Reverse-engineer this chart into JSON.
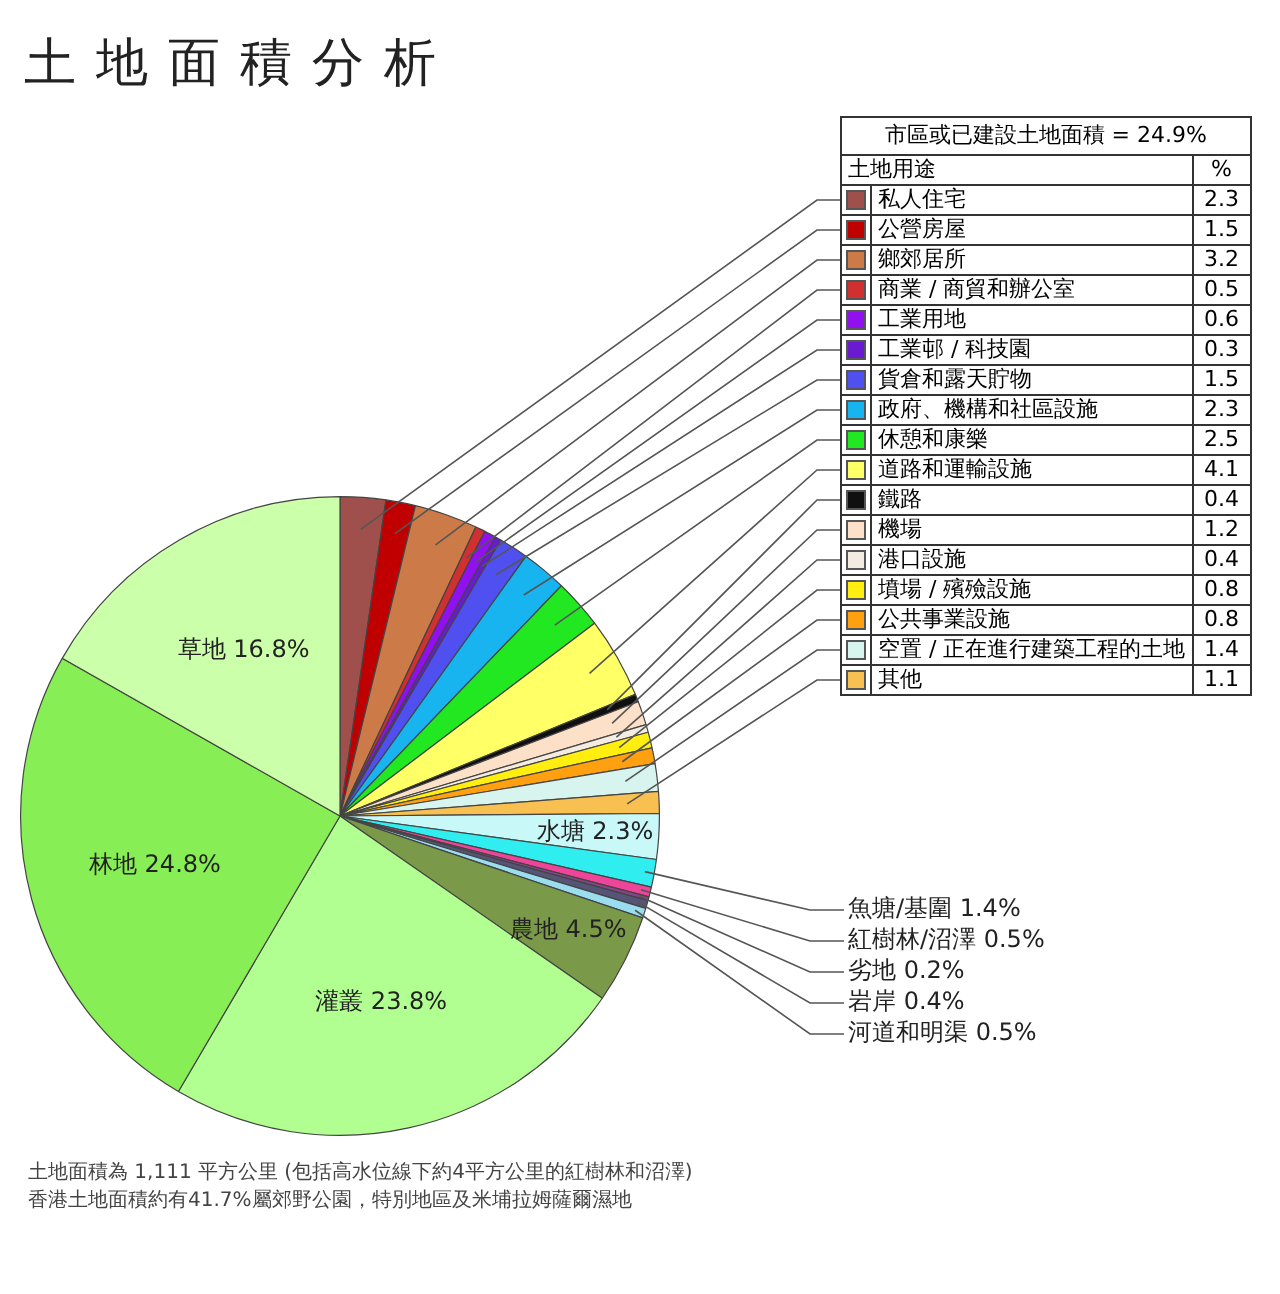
{
  "chart_data": {
    "type": "pie",
    "title": "土地面積分析",
    "legend_title": "市區或已建設土地面積 = 24.9%",
    "legend": "top right",
    "categories": [
      "私人住宅",
      "公營房屋",
      "鄉郊居所",
      "商業 / 商貿和辦公室",
      "工業用地",
      "工業邨 / 科技園",
      "貨倉和露天貯物",
      "政府、機構和社區設施",
      "休憩和康樂",
      "道路和運輸設施",
      "鐵路",
      "機場",
      "港口設施",
      "墳場 / 殯殮設施",
      "公共事業設施",
      "空置 / 正在進行建築工程的土地",
      "其他",
      "水塘",
      "魚塘/基圍",
      "紅樹林/沼澤",
      "劣地",
      "岩岸",
      "河道和明渠",
      "農地",
      "灌叢",
      "林地",
      "草地"
    ],
    "values": [
      2.3,
      1.5,
      3.2,
      0.5,
      0.6,
      0.3,
      1.5,
      2.3,
      2.5,
      4.1,
      0.4,
      1.2,
      0.4,
      0.8,
      0.8,
      1.4,
      1.1,
      2.3,
      1.4,
      0.5,
      0.2,
      0.4,
      0.5,
      4.5,
      23.8,
      24.8,
      16.8
    ],
    "value_labels": [
      "2.3",
      "1.5",
      "3.2",
      "0.5",
      "0.6",
      "0.3",
      "1.5",
      "2.3",
      "2.5",
      "4.1",
      "0.4",
      "1.2",
      "0.4",
      "0.8",
      "0.8",
      "1.4",
      "1.1",
      "2.3%",
      "1.4%",
      "0.5%",
      "0.2%",
      "0.4%",
      "0.5%",
      "4.5%",
      "23.8%",
      "24.8%",
      "16.8%"
    ],
    "colors": [
      "#a0504c",
      "#c00000",
      "#cc7a48",
      "#d03030",
      "#9010f0",
      "#6a1ad0",
      "#5050f0",
      "#18b4f0",
      "#22e822",
      "#ffff66",
      "#101010",
      "#fde0c8",
      "#f4ece0",
      "#ffee10",
      "#ffa010",
      "#d8f4ee",
      "#f8c050",
      "#c8f8f8",
      "#30eef0",
      "#ee4499",
      "#884488",
      "#555577",
      "#99ddee",
      "#7a9a4a",
      "#b0ff90",
      "#88ee55",
      "#ccffaa"
    ],
    "annotations": [
      "土地用途",
      "%",
      "土地面積為 1,111 平方公里 (包括高水位線下約4平方公里的紅樹林和沼澤)",
      "香港土地面積約有41.7%屬郊野公園，特別地區及米埔拉姆薩爾濕地"
    ]
  }
}
